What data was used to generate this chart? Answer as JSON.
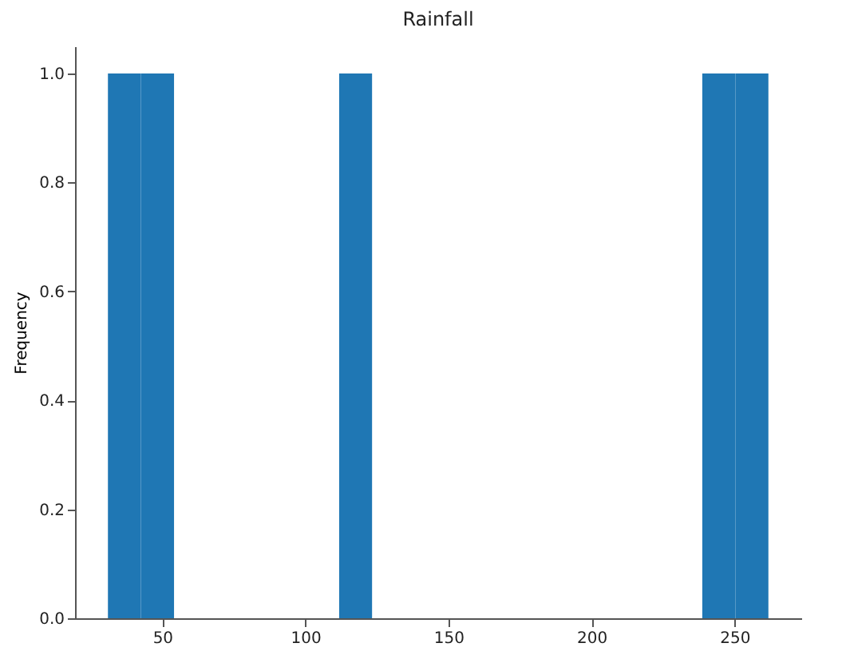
{
  "chart_data": {
    "type": "histogram",
    "title": "Rainfall",
    "ylabel": "Frequency",
    "bins": [
      31.0,
      42.5,
      54.1,
      65.6,
      77.2,
      88.7,
      100.2,
      111.8,
      123.3,
      134.9,
      146.4,
      157.9,
      169.5,
      181.0,
      192.6,
      204.1,
      215.6,
      227.2,
      238.7,
      250.3,
      261.8
    ],
    "values": [
      1,
      1,
      0,
      0,
      0,
      0,
      0,
      1,
      0,
      0,
      0,
      0,
      0,
      0,
      0,
      0,
      0,
      0,
      1,
      1
    ],
    "color": "#1f77b4",
    "xlim": [
      19.5,
      273.3
    ],
    "xticks": [
      50,
      100,
      150,
      200,
      250
    ],
    "ylim": [
      0,
      1.05
    ],
    "yticks": [
      {
        "value": 0,
        "label": "0.0"
      },
      {
        "value": 0.2,
        "label": "0.2"
      },
      {
        "value": 0.4,
        "label": "0.4"
      },
      {
        "value": 0.6,
        "label": "0.6"
      },
      {
        "value": 0.8,
        "label": "0.8"
      },
      {
        "value": 1.0,
        "label": "1.0"
      }
    ],
    "grid": false
  }
}
